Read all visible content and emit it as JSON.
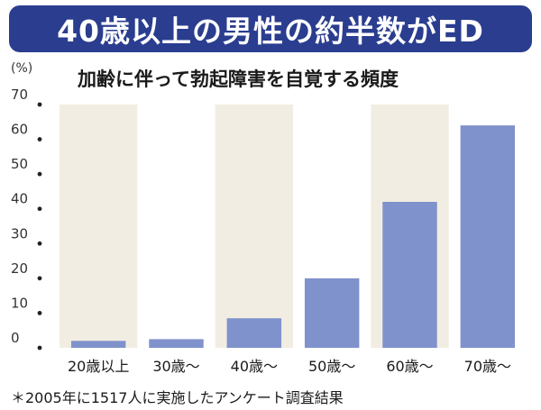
{
  "headline": "40歳以上の男性の約半数がED",
  "chart_data": {
    "type": "bar",
    "title": "加齢に伴って勃起障害を自覚する頻度",
    "ylabel": "(%)",
    "xlabel": "",
    "categories": [
      "20歳以上",
      "30歳～",
      "40歳～",
      "50歳～",
      "60歳～",
      "70歳～"
    ],
    "values": [
      2,
      2.5,
      8.5,
      20,
      42,
      64
    ],
    "ylim": [
      0,
      70
    ],
    "yticks": [
      0,
      10,
      20,
      30,
      40,
      50,
      60,
      70
    ],
    "grid": false,
    "bar_color": "#8092cc",
    "band_color": "#f1ede2"
  },
  "footnote": "＊2005年に1517人に実施したアンケート調査結果"
}
